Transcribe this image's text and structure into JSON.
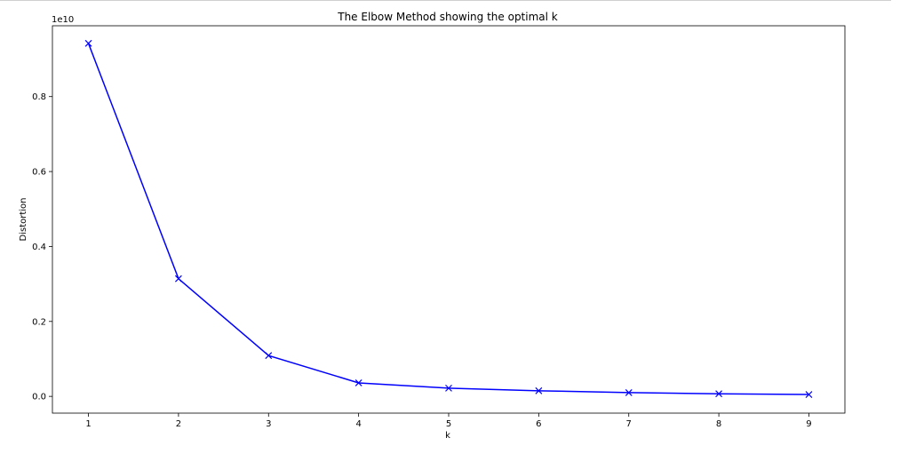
{
  "chart_data": {
    "type": "line",
    "title": "The Elbow Method showing the optimal k",
    "xlabel": "k",
    "ylabel": "Distortion",
    "y_offset_label": "1e10",
    "x": [
      1,
      2,
      3,
      4,
      5,
      6,
      7,
      8,
      9
    ],
    "series": [
      {
        "values": [
          0.942,
          0.314,
          0.109,
          0.036,
          0.022,
          0.015,
          0.01,
          0.007,
          0.005
        ],
        "color": "#0000ff",
        "marker": "x"
      }
    ],
    "xticks": [
      1,
      2,
      3,
      4,
      5,
      6,
      7,
      8,
      9
    ],
    "yticks": [
      0.0,
      0.2,
      0.4,
      0.6,
      0.8
    ],
    "ytick_labels": [
      "0.0",
      "0.2",
      "0.4",
      "0.6",
      "0.8"
    ],
    "xlim": [
      0.6,
      9.4
    ],
    "ylim": [
      -0.0447,
      0.989
    ],
    "grid": false,
    "legend": false
  }
}
